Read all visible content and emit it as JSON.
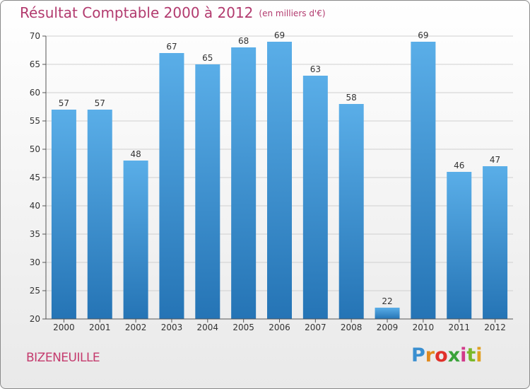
{
  "chart_data": {
    "type": "bar",
    "title": "Résultat Comptable 2000 à 2012",
    "subtitle": "(en milliers d'€)",
    "categories": [
      "2000",
      "2001",
      "2002",
      "2003",
      "2004",
      "2005",
      "2006",
      "2007",
      "2008",
      "2009",
      "2010",
      "2011",
      "2012"
    ],
    "values": [
      57,
      57,
      48,
      67,
      65,
      68,
      69,
      63,
      58,
      22,
      69,
      46,
      47
    ],
    "ylim": [
      20,
      70
    ],
    "yticks": [
      20,
      25,
      30,
      35,
      40,
      45,
      50,
      55,
      60,
      65,
      70
    ],
    "grid": true,
    "colors": {
      "bar_top": "#5aaee8",
      "bar_bottom": "#2574b5",
      "grid": "#d0d0d0",
      "text": "#333333"
    }
  },
  "footer": {
    "commune": "BIZENEUILLE",
    "logo": "Proxiti",
    "logo_colors": [
      "#3a8fd0",
      "#e08a1e",
      "#e0302a",
      "#3aa23a",
      "#d23a8a",
      "#7ab82a",
      "#e0a020"
    ]
  }
}
